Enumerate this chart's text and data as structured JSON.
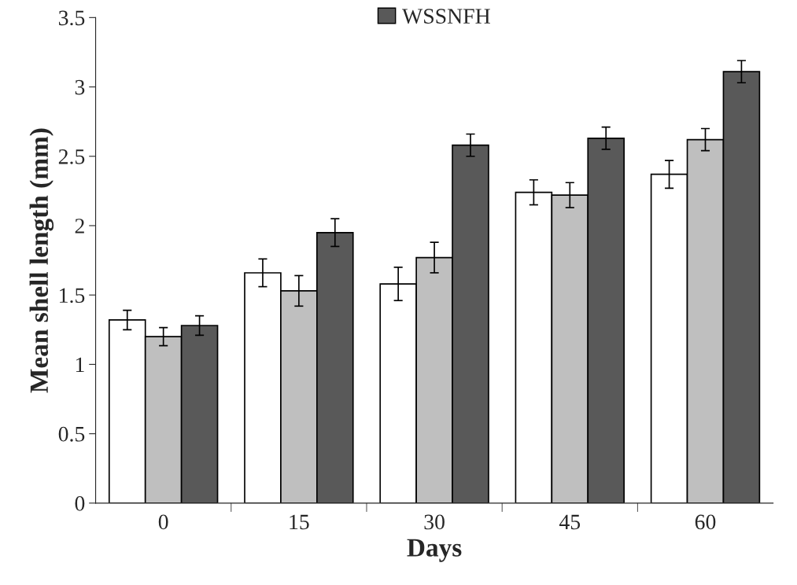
{
  "chart_data": {
    "type": "bar",
    "xlabel": "Days",
    "ylabel": "Mean shell length (mm)",
    "categories": [
      "0",
      "15",
      "30",
      "45",
      "60"
    ],
    "series": [
      {
        "color": "#ffffff",
        "values": [
          1.32,
          1.66,
          1.58,
          2.24,
          2.37
        ],
        "errors": [
          0.07,
          0.1,
          0.12,
          0.09,
          0.1
        ]
      },
      {
        "color": "#bfbfbf",
        "values": [
          1.2,
          1.53,
          1.77,
          2.22,
          2.62
        ],
        "errors": [
          0.065,
          0.11,
          0.11,
          0.09,
          0.08
        ]
      },
      {
        "name": "WSSNFH",
        "color": "#595959",
        "values": [
          1.28,
          1.95,
          2.58,
          2.63,
          3.11
        ],
        "errors": [
          0.07,
          0.1,
          0.08,
          0.08,
          0.08
        ]
      }
    ],
    "ylim": [
      0,
      3.5
    ],
    "yticks": [
      0,
      {
        "value": 0.5,
        "label": "0.5"
      },
      1,
      {
        "value": 1.5,
        "label": "1.5"
      },
      2,
      {
        "value": 2.5,
        "label": "2.5"
      },
      3,
      {
        "value": 3.5,
        "label": "3.5"
      }
    ],
    "grid": false,
    "legend": "top"
  }
}
